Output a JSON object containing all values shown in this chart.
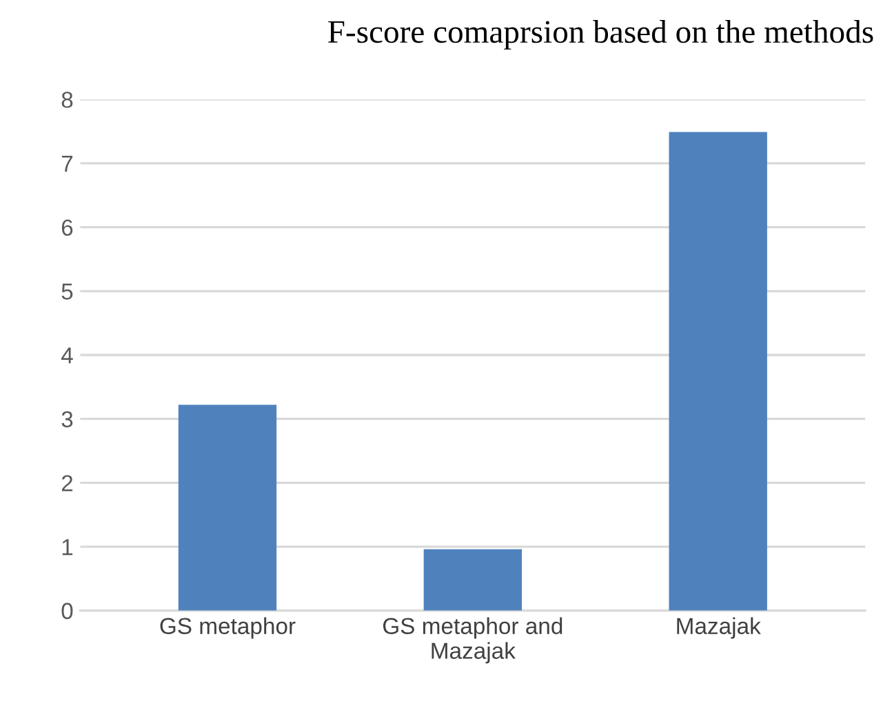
{
  "chart_data": {
    "type": "bar",
    "title": "F-score comaprsion based on the methods",
    "categories": [
      "GS metaphor",
      "GS metaphor and\nMazajak",
      "Mazajak"
    ],
    "values": [
      3.22,
      0.96,
      7.49
    ],
    "color": "#4f81bd",
    "ylim": [
      0,
      8
    ],
    "yticks": [
      0,
      1,
      2,
      3,
      4,
      5,
      6,
      7,
      8
    ],
    "grid": "y",
    "legend": false
  }
}
